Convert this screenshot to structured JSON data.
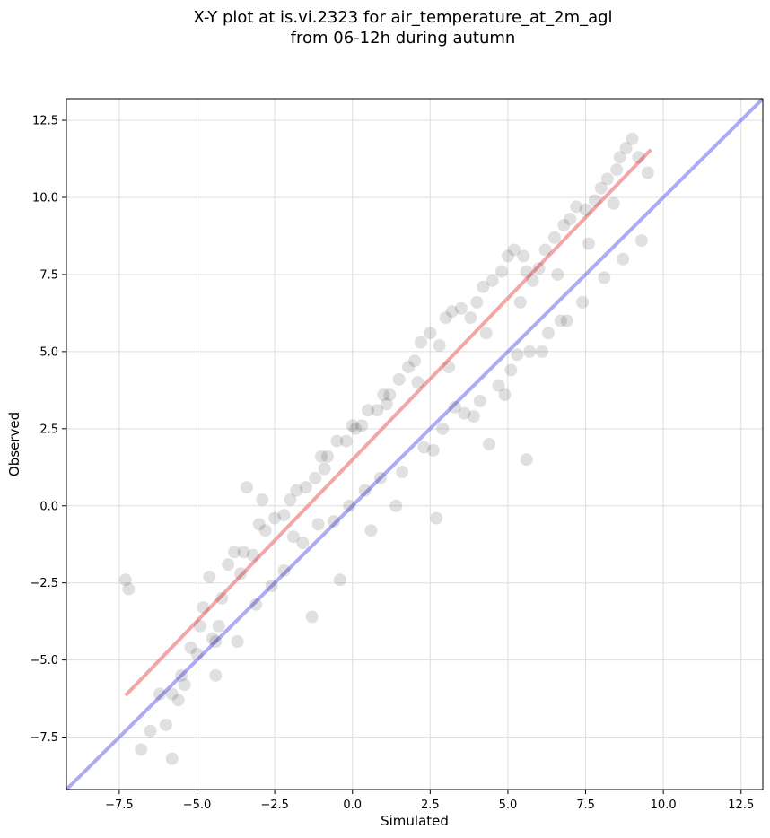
{
  "chart_data": {
    "type": "scatter",
    "title_lines": [
      "X-Y plot at is.vi.2323 for air_temperature_at_2m_agl",
      "from 06-12h during autumn"
    ],
    "xlabel": "Simulated",
    "ylabel": "Observed",
    "xlim": [
      -9.2,
      13.2
    ],
    "ylim": [
      -9.2,
      13.2
    ],
    "xticks": [
      -7.5,
      -5.0,
      -2.5,
      0.0,
      2.5,
      5.0,
      7.5,
      10.0,
      12.5
    ],
    "yticks": [
      -7.5,
      -5.0,
      -2.5,
      0.0,
      2.5,
      5.0,
      7.5,
      10.0,
      12.5
    ],
    "xtick_labels": [
      "−7.5",
      "−5.0",
      "−2.5",
      "0.0",
      "2.5",
      "5.0",
      "7.5",
      "10.0",
      "12.5"
    ],
    "ytick_labels": [
      "−7.5",
      "−5.0",
      "−2.5",
      "0.0",
      "2.5",
      "5.0",
      "7.5",
      "10.0",
      "12.5"
    ],
    "grid": true,
    "colors": {
      "points": "#000000",
      "regression": "#f08080",
      "identity": "#6666ee"
    },
    "identity_line": {
      "x": [
        -9.2,
        13.2
      ],
      "y": [
        -9.2,
        13.2
      ]
    },
    "regression_line": {
      "x": [
        -7.3,
        9.6
      ],
      "y": [
        -6.15,
        11.55
      ]
    },
    "points": {
      "x": [
        -7.3,
        -7.2,
        -6.8,
        -6.5,
        -6.2,
        -6.0,
        -5.8,
        -5.6,
        -5.5,
        -5.4,
        -5.2,
        -5.0,
        -4.9,
        -4.8,
        -4.6,
        -4.5,
        -4.4,
        -4.3,
        -4.2,
        -4.0,
        -3.8,
        -3.6,
        -3.5,
        -3.2,
        -3.0,
        -2.8,
        -2.5,
        -2.2,
        -2.0,
        -1.8,
        -1.5,
        -1.2,
        -1.0,
        -0.8,
        -0.5,
        -0.2,
        0.0,
        0.3,
        0.5,
        0.8,
        1.0,
        1.2,
        1.5,
        1.8,
        2.0,
        2.2,
        2.5,
        2.8,
        3.0,
        3.2,
        3.5,
        3.8,
        4.0,
        4.2,
        4.5,
        4.8,
        5.0,
        5.2,
        5.5,
        5.6,
        5.8,
        6.0,
        6.2,
        6.5,
        6.8,
        7.0,
        7.2,
        7.5,
        7.8,
        8.0,
        8.2,
        8.5,
        8.6,
        8.8,
        9.0,
        9.2,
        9.5,
        -5.8,
        -4.4,
        -3.7,
        -3.1,
        -2.6,
        -2.2,
        -1.6,
        -1.1,
        -0.6,
        -0.1,
        0.4,
        0.9,
        1.6,
        2.3,
        2.9,
        3.6,
        4.1,
        4.7,
        5.1,
        5.7,
        6.3,
        6.9,
        7.4,
        8.1,
        8.7,
        9.3,
        -3.4,
        -2.9,
        -1.9,
        -0.9,
        0.1,
        1.1,
        2.1,
        3.1,
        4.3,
        5.4,
        6.6,
        7.6,
        8.4,
        2.6,
        3.3,
        4.4,
        5.6,
        6.1,
        -1.3,
        -0.4,
        0.6,
        1.4,
        2.7,
        3.9,
        4.9,
        5.3,
        6.7
      ],
      "y": [
        -2.4,
        -2.7,
        -7.9,
        -7.3,
        -6.1,
        -7.1,
        -6.1,
        -6.3,
        -5.5,
        -5.8,
        -4.6,
        -4.8,
        -3.9,
        -3.3,
        -2.3,
        -4.3,
        -4.4,
        -3.9,
        -3.0,
        -1.9,
        -1.5,
        -2.2,
        -1.5,
        -1.6,
        -0.6,
        -0.8,
        -0.4,
        -0.3,
        0.2,
        0.5,
        0.6,
        0.9,
        1.6,
        1.6,
        2.1,
        2.1,
        2.6,
        2.6,
        3.1,
        3.1,
        3.6,
        3.6,
        4.1,
        4.5,
        4.7,
        5.3,
        5.6,
        5.2,
        6.1,
        6.3,
        6.4,
        6.1,
        6.6,
        7.1,
        7.3,
        7.6,
        8.1,
        8.3,
        8.1,
        7.6,
        7.3,
        7.7,
        8.3,
        8.7,
        9.1,
        9.3,
        9.7,
        9.6,
        9.9,
        10.3,
        10.6,
        10.9,
        11.3,
        11.6,
        11.9,
        11.3,
        10.8,
        -8.2,
        -5.5,
        -4.4,
        -3.2,
        -2.6,
        -2.1,
        -1.2,
        -0.6,
        -0.5,
        0.0,
        0.5,
        0.9,
        1.1,
        1.9,
        2.5,
        3.0,
        3.4,
        3.9,
        4.4,
        5.0,
        5.6,
        6.0,
        6.6,
        7.4,
        8.0,
        8.6,
        0.6,
        0.2,
        -1.0,
        1.2,
        2.5,
        3.3,
        4.0,
        4.5,
        5.6,
        6.6,
        7.5,
        8.5,
        9.8,
        1.8,
        3.2,
        2.0,
        1.5,
        5.0,
        -3.6,
        -2.4,
        -0.8,
        0.0,
        -0.4,
        2.9,
        3.6,
        4.9,
        6.0
      ]
    }
  }
}
